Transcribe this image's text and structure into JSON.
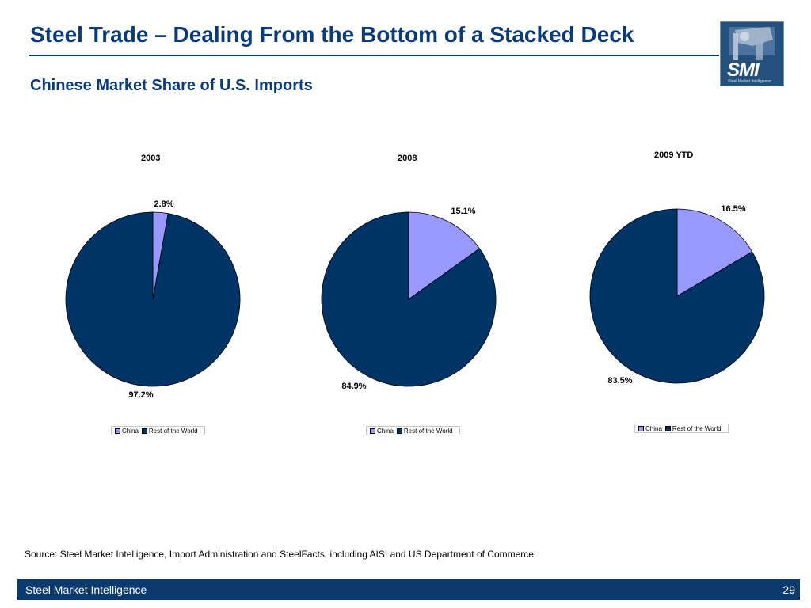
{
  "header": {
    "title": "Steel Trade – Dealing From the Bottom of a Stacked Deck",
    "subtitle": "Chinese Market Share of U.S. Imports"
  },
  "logo": {
    "text": "SMI",
    "tagline": "Steel Market Intelligence"
  },
  "colors": {
    "china": "#9999ff",
    "rest_of_world": "#003366",
    "title": "#0b3a78",
    "footer": "#0d3a6e"
  },
  "chart_data": [
    {
      "type": "pie",
      "title": "2003",
      "categories": [
        "China",
        "Rest of the World"
      ],
      "values": [
        2.8,
        97.2
      ],
      "labels": [
        "2.8%",
        "97.2%"
      ],
      "legend": [
        "China",
        "Rest of the World"
      ],
      "legend_position": "bottom"
    },
    {
      "type": "pie",
      "title": "2008",
      "categories": [
        "China",
        "Rest of the World"
      ],
      "values": [
        15.1,
        84.9
      ],
      "labels": [
        "15.1%",
        "84.9%"
      ],
      "legend": [
        "China",
        "Rest of the World"
      ],
      "legend_position": "bottom"
    },
    {
      "type": "pie",
      "title": "2009 YTD",
      "categories": [
        "China",
        "Rest of the World"
      ],
      "values": [
        16.5,
        83.5
      ],
      "labels": [
        "16.5%",
        "83.5%"
      ],
      "legend": [
        "China",
        "Rest of the World"
      ],
      "legend_position": "bottom"
    }
  ],
  "source": "Source: Steel Market Intelligence, Import Administration and SteelFacts; including AISI and US Department of Commerce.",
  "footer": {
    "left": "Steel Market Intelligence",
    "page_number": "29"
  }
}
